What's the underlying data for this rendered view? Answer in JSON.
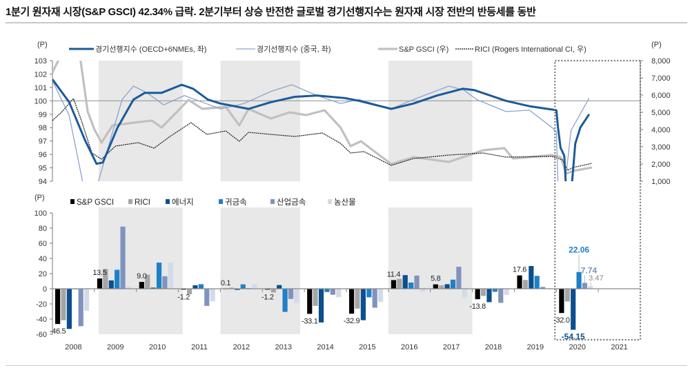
{
  "title": "1분기 원자재 시장(S&P GSCI) 42.34% 급락. 2분기부터 상승 반전한 글로벌 경기선행지수는 원자재 시장 전반의 반등세를 동반",
  "colors": {
    "oecd": "#1a5a9a",
    "china": "#8aa3cc",
    "gsci_line": "#c0c0c0",
    "rici_line": "#111111",
    "bar_gsci": "#000000",
    "bar_rici": "#a6a6a6",
    "bar_energy": "#0b4f8e",
    "bar_precious": "#1f80c8",
    "bar_industrial": "#7f93bd",
    "bar_agri": "#d3dbea",
    "shade": "#e8e8e8"
  },
  "chart_data": [
    {
      "type": "line",
      "left_unit": "(P)",
      "right_unit": "(P)",
      "left_ylim": [
        94,
        103
      ],
      "left_ticks": [
        "94",
        "95",
        "96",
        "97",
        "98",
        "99",
        "100",
        "101",
        "102",
        "103"
      ],
      "right_ylim": [
        1000,
        8000
      ],
      "right_ticks": [
        "1,000",
        "2,000",
        "3,000",
        "4,000",
        "5,000",
        "6,000",
        "7,000",
        "8,000"
      ],
      "xlim": [
        2008,
        2022
      ],
      "reference_line": 100,
      "shaded_periods": [
        [
          2009.1,
          2011.1
        ],
        [
          2012.0,
          2013.9
        ],
        [
          2016.0,
          2018.0
        ]
      ],
      "highlight_box": [
        2020.0,
        2022.0
      ],
      "series": [
        {
          "name": "경기선행지수 (OECD+6NMEs, 좌)",
          "axis": "left",
          "style": "thick",
          "points": [
            [
              2008.0,
              101.6
            ],
            [
              2008.4,
              99.9
            ],
            [
              2008.77,
              97.1
            ],
            [
              2009.05,
              95.3
            ],
            [
              2009.2,
              95.4
            ],
            [
              2009.55,
              98.0
            ],
            [
              2009.93,
              100.1
            ],
            [
              2010.2,
              100.6
            ],
            [
              2010.6,
              100.6
            ],
            [
              2011.08,
              101.2
            ],
            [
              2011.35,
              100.9
            ],
            [
              2011.7,
              100.1
            ],
            [
              2012.0,
              99.8
            ],
            [
              2012.67,
              99.4
            ],
            [
              2013.2,
              99.9
            ],
            [
              2013.77,
              100.3
            ],
            [
              2014.3,
              100.4
            ],
            [
              2014.97,
              100.2
            ],
            [
              2015.3,
              100.0
            ],
            [
              2016.07,
              99.4
            ],
            [
              2016.6,
              99.8
            ],
            [
              2017.16,
              100.4
            ],
            [
              2017.77,
              100.9
            ],
            [
              2018.05,
              100.8
            ],
            [
              2018.8,
              100.0
            ],
            [
              2019.36,
              99.6
            ],
            [
              2020.0,
              99.3
            ],
            [
              2020.04,
              98.0
            ],
            [
              2020.1,
              96.5
            ],
            [
              2020.19,
              95.9
            ],
            [
              2020.24,
              93.0
            ],
            [
              2020.35,
              93.0
            ],
            [
              2020.45,
              96.8
            ],
            [
              2020.57,
              98.0
            ],
            [
              2020.78,
              99.0
            ]
          ]
        },
        {
          "name": "경기선행지수 (중국, 좌)",
          "axis": "left",
          "style": "thin",
          "points": [
            [
              2008.0,
              101.5
            ],
            [
              2008.4,
              98.9
            ],
            [
              2008.75,
              93.5
            ],
            [
              2009.05,
              93.5
            ],
            [
              2009.38,
              97.1
            ],
            [
              2009.66,
              100.1
            ],
            [
              2009.93,
              101.1
            ],
            [
              2010.25,
              100.6
            ],
            [
              2010.65,
              99.7
            ],
            [
              2011.14,
              100.4
            ],
            [
              2011.57,
              99.9
            ],
            [
              2012.0,
              99.4
            ],
            [
              2012.56,
              99.8
            ],
            [
              2013.2,
              100.7
            ],
            [
              2013.7,
              101.2
            ],
            [
              2014.3,
              100.4
            ],
            [
              2014.86,
              99.8
            ],
            [
              2015.3,
              100.1
            ],
            [
              2015.52,
              99.9
            ],
            [
              2016.07,
              99.4
            ],
            [
              2016.6,
              100.1
            ],
            [
              2017.44,
              101.1
            ],
            [
              2017.8,
              100.8
            ],
            [
              2018.1,
              100.1
            ],
            [
              2018.8,
              99.2
            ],
            [
              2019.36,
              99.3
            ],
            [
              2019.9,
              98.0
            ],
            [
              2020.0,
              97.7
            ],
            [
              2020.05,
              93.0
            ],
            [
              2020.18,
              93.0
            ],
            [
              2020.35,
              97.8
            ],
            [
              2020.78,
              100.2
            ]
          ]
        },
        {
          "name": "S&P GSCI (우)",
          "axis": "right",
          "style": "gray",
          "points": [
            [
              2008.0,
              7320
            ],
            [
              2008.2,
              8300
            ],
            [
              2008.5,
              8600
            ],
            [
              2008.67,
              8000
            ],
            [
              2008.84,
              5040
            ],
            [
              2009.0,
              4000
            ],
            [
              2009.17,
              3240
            ],
            [
              2009.43,
              4240
            ],
            [
              2009.93,
              4400
            ],
            [
              2010.37,
              4520
            ],
            [
              2010.6,
              4120
            ],
            [
              2011.24,
              5720
            ],
            [
              2011.57,
              5200
            ],
            [
              2012.13,
              5320
            ],
            [
              2012.45,
              4240
            ],
            [
              2012.67,
              5200
            ],
            [
              2013.2,
              4640
            ],
            [
              2013.65,
              5000
            ],
            [
              2014.04,
              4840
            ],
            [
              2014.48,
              5120
            ],
            [
              2014.86,
              4120
            ],
            [
              2015.1,
              3040
            ],
            [
              2015.35,
              3320
            ],
            [
              2015.63,
              2800
            ],
            [
              2016.07,
              2000
            ],
            [
              2016.6,
              2400
            ],
            [
              2017.44,
              2120
            ],
            [
              2018.26,
              2800
            ],
            [
              2018.76,
              2920
            ],
            [
              2018.97,
              2320
            ],
            [
              2019.9,
              2520
            ],
            [
              2020.1,
              2400
            ],
            [
              2020.24,
              1440
            ],
            [
              2020.4,
              1600
            ],
            [
              2020.85,
              1800
            ]
          ]
        },
        {
          "name": "RICI (Rogers International CI, 우)",
          "axis": "right",
          "style": "dashed",
          "points": [
            [
              2008.0,
              4520
            ],
            [
              2008.23,
              5040
            ],
            [
              2008.5,
              5800
            ],
            [
              2008.69,
              4520
            ],
            [
              2008.94,
              2640
            ],
            [
              2009.17,
              2280
            ],
            [
              2009.5,
              3040
            ],
            [
              2010.04,
              3240
            ],
            [
              2010.42,
              2920
            ],
            [
              2010.8,
              3600
            ],
            [
              2011.3,
              4400
            ],
            [
              2011.68,
              3720
            ],
            [
              2012.13,
              3920
            ],
            [
              2012.45,
              3320
            ],
            [
              2012.67,
              3840
            ],
            [
              2013.2,
              3720
            ],
            [
              2013.77,
              3600
            ],
            [
              2014.43,
              3800
            ],
            [
              2014.86,
              3200
            ],
            [
              2015.1,
              2640
            ],
            [
              2015.42,
              2720
            ],
            [
              2016.07,
              1920
            ],
            [
              2016.6,
              2320
            ],
            [
              2017.44,
              2520
            ],
            [
              2018.26,
              2640
            ],
            [
              2018.8,
              2400
            ],
            [
              2019.9,
              2440
            ],
            [
              2020.15,
              2240
            ],
            [
              2020.27,
              1640
            ],
            [
              2020.4,
              1800
            ],
            [
              2020.85,
              2040
            ]
          ]
        }
      ]
    },
    {
      "type": "bar",
      "unit": "(P)",
      "ylim": [
        -60,
        100
      ],
      "y_ticks": [
        "-60",
        "-40",
        "-20",
        "0",
        "20",
        "40",
        "60",
        "80",
        "100"
      ],
      "categories": [
        "2008",
        "2009",
        "2010",
        "2011",
        "2012",
        "2013",
        "2014",
        "2015",
        "2016",
        "2017",
        "2018",
        "2019",
        "2020",
        "2021"
      ],
      "shaded_periods": [
        [
          2009.1,
          2011.1
        ],
        [
          2012.0,
          2013.9
        ],
        [
          2016.0,
          2018.0
        ]
      ],
      "series": [
        {
          "name": "S&P GSCI",
          "color_key": "bar_gsci",
          "values": [
            -46.5,
            13.5,
            9.0,
            -1.2,
            0.1,
            -1.2,
            -33.1,
            -32.9,
            11.4,
            5.8,
            -13.8,
            17.6,
            -32.0,
            null
          ]
        },
        {
          "name": "RICI",
          "color_key": "bar_rici",
          "values": [
            -41.5,
            26,
            18.6,
            -7.3,
            1.5,
            -4.9,
            -22.6,
            -26.2,
            13,
            4.6,
            -9.5,
            11.6,
            -16.8,
            null
          ]
        },
        {
          "name": "에너지",
          "color_key": "bar_energy",
          "values": [
            -53,
            11,
            1.5,
            4.6,
            -1.5,
            4.9,
            -44.5,
            -41.5,
            18,
            6,
            -17.7,
            30,
            -54.15,
            null
          ]
        },
        {
          "name": "귀금속",
          "color_key": "bar_precious",
          "values": [
            0,
            25,
            34.5,
            6,
            5.8,
            -30.5,
            -4.3,
            -11.3,
            8.2,
            12,
            -4,
            17,
            22.06,
            null
          ]
        },
        {
          "name": "산업금속",
          "color_key": "bar_industrial",
          "values": [
            -49.4,
            82,
            16.5,
            -22.6,
            0.9,
            -13.4,
            -7.9,
            -25,
            17.4,
            29,
            -18.6,
            2.4,
            7.74,
            null
          ]
        },
        {
          "name": "농산물",
          "color_key": "bar_agri",
          "values": [
            -29,
            3.4,
            34.5,
            -16.5,
            6,
            -18.6,
            -11,
            -17.4,
            -4.3,
            -12.2,
            -8.2,
            0,
            3.47,
            null
          ]
        }
      ],
      "data_labels": {
        "gsci": [
          "-46.5",
          "13.5",
          "9.0",
          "-1.2",
          "0.1",
          "-1.2",
          "-33.1",
          "-32.9",
          "11.4",
          "5.8",
          "-13.8",
          "17.6",
          "-32.0"
        ],
        "highlight_2020": [
          {
            "series": 2,
            "text": "-54.15"
          },
          {
            "series": 3,
            "text": "22.06"
          },
          {
            "series": 4,
            "text": "7.74"
          },
          {
            "series": 5,
            "text": "3.47"
          }
        ]
      }
    }
  ]
}
